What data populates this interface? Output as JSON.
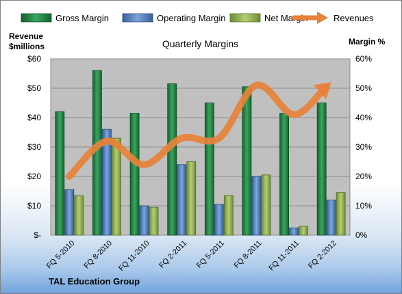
{
  "chart_data": {
    "type": "bar",
    "title": "Quarterly Margins",
    "categories": [
      "FQ 5-2010",
      "FQ 8-2010",
      "FQ 11-2010",
      "FQ 2-2011",
      "FQ 5-2011",
      "FQ 8-2011",
      "FQ 11-2011",
      "FQ 2-2012"
    ],
    "series": [
      {
        "name": "Gross Margin",
        "axis": "right",
        "chart": "bar",
        "color": "#1e7a3e",
        "values": [
          42,
          56,
          41.5,
          51.5,
          45,
          50.5,
          41.5,
          45
        ]
      },
      {
        "name": "Operating Margin",
        "axis": "right",
        "chart": "bar",
        "color": "#4f7fbf",
        "values": [
          15.5,
          36,
          10,
          24,
          10.5,
          20,
          2.5,
          12
        ]
      },
      {
        "name": "Net Margin",
        "axis": "right",
        "chart": "bar",
        "color": "#8fad4f",
        "values": [
          13.5,
          33,
          9.5,
          25,
          13.5,
          20.5,
          3,
          14.5
        ]
      },
      {
        "name": "Revenues",
        "axis": "left",
        "chart": "line",
        "color": "#e8823a",
        "values": [
          20,
          32,
          24,
          33,
          33,
          51,
          41,
          52
        ]
      }
    ],
    "left_axis": {
      "label_lines": [
        "Revenue",
        "$millions"
      ],
      "ylim": [
        0,
        60
      ],
      "ticks": [
        0,
        10,
        20,
        30,
        40,
        50,
        60
      ],
      "tick_labels": [
        "$-",
        "$10",
        "$20",
        "$30",
        "$40",
        "$50",
        "$60"
      ]
    },
    "right_axis": {
      "label": "Margin %",
      "ylim": [
        0,
        60
      ],
      "ticks": [
        0,
        10,
        20,
        30,
        40,
        50,
        60
      ],
      "tick_labels": [
        "0%",
        "10%",
        "20%",
        "30%",
        "40%",
        "50%",
        "60%"
      ]
    },
    "grid": true,
    "legend_position": "top",
    "plot_background": "#c0c0c0"
  },
  "footer": {
    "company": "TAL Education Group"
  }
}
